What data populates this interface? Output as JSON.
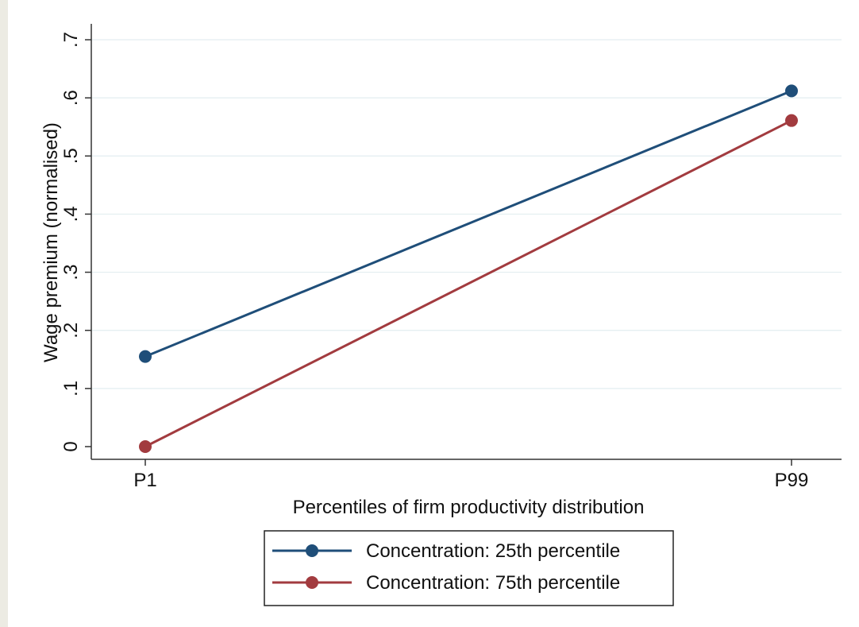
{
  "chart_data": {
    "type": "line",
    "title": "",
    "xlabel": "Percentiles of firm productivity distribution",
    "ylabel": "Wage premium (normalised)",
    "categories": [
      "P1",
      "P99"
    ],
    "ylim": [
      0,
      0.7
    ],
    "yticks": [
      0,
      0.1,
      0.2,
      0.3,
      0.4,
      0.5,
      0.6,
      0.7
    ],
    "ytick_labels": [
      "0",
      ".1",
      ".2",
      ".3",
      ".4",
      ".5",
      ".6",
      ".7"
    ],
    "grid": true,
    "legend_position": "bottom",
    "series": [
      {
        "name": "Concentration: 25th percentile",
        "color": "#1F4E79",
        "values": [
          0.155,
          0.612
        ]
      },
      {
        "name": "Concentration: 75th percentile",
        "color": "#A23B3F",
        "values": [
          0.0,
          0.561
        ]
      }
    ]
  }
}
